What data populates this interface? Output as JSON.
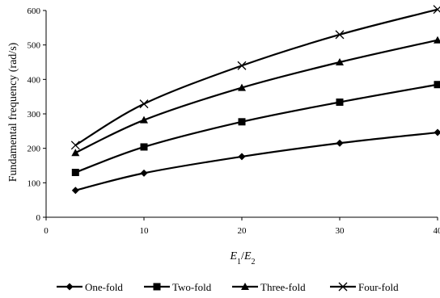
{
  "chart_data": {
    "type": "line",
    "x": [
      3,
      10,
      20,
      30,
      40
    ],
    "xlim": [
      0,
      40
    ],
    "ylim": [
      0,
      600
    ],
    "xticks": [
      0,
      10,
      20,
      30,
      40
    ],
    "yticks": [
      0,
      100,
      200,
      300,
      400,
      500,
      600
    ],
    "ylabel": "Fundamental frequency (rad/s)",
    "xlabel": {
      "a": "E",
      "a_sub": "1",
      "sep": "/",
      "b": "E",
      "b_sub": "2"
    },
    "grid": false,
    "legend_position": "bottom",
    "series": [
      {
        "name": "One-fold",
        "marker": "diamond",
        "values": [
          78,
          128,
          176,
          215,
          246
        ]
      },
      {
        "name": "Two-fold",
        "marker": "square",
        "values": [
          130,
          204,
          277,
          334,
          385
        ]
      },
      {
        "name": "Three-fold",
        "marker": "triangle",
        "values": [
          187,
          282,
          376,
          450,
          514
        ]
      },
      {
        "name": "Four-fold",
        "marker": "x",
        "values": [
          209,
          329,
          440,
          530,
          603
        ]
      }
    ]
  }
}
